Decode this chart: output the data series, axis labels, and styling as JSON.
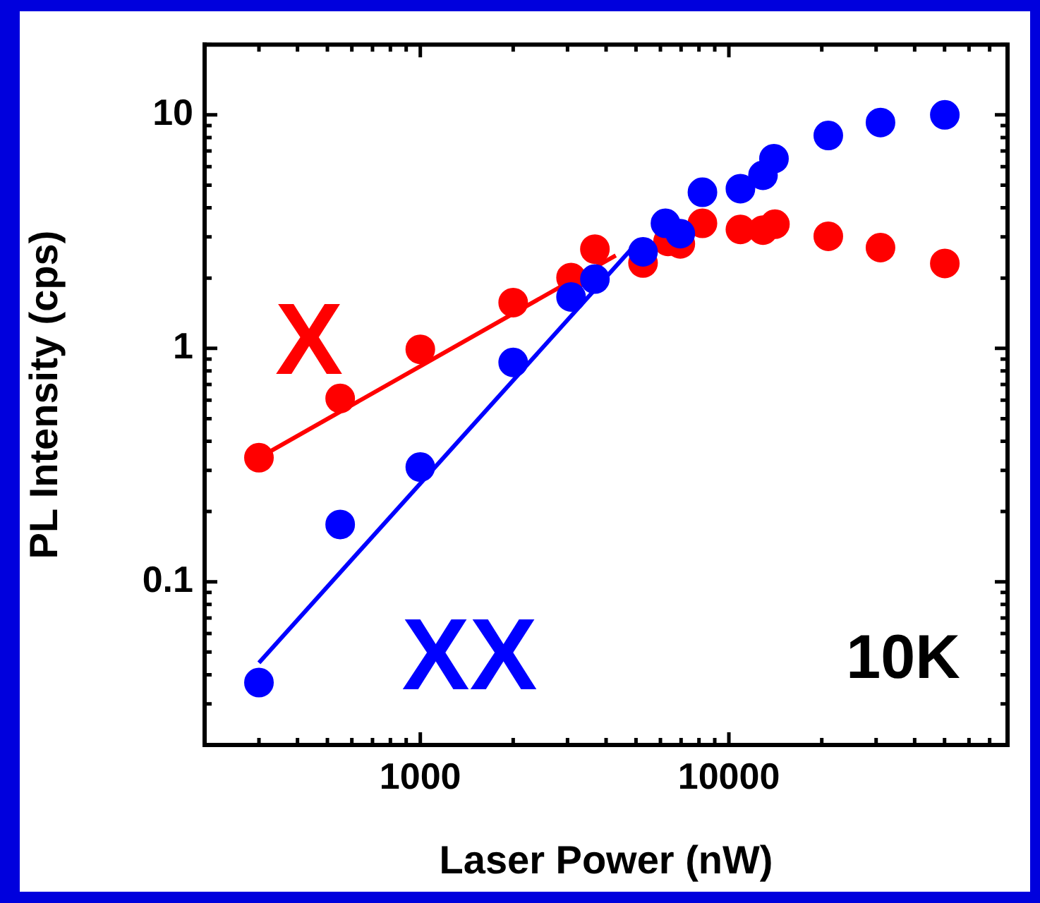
{
  "chart_data": {
    "type": "scatter",
    "xlabel": "Laser Power (nW)",
    "ylabel": "PL Intensity (cps)",
    "log": "xy",
    "grid": false,
    "legend": false,
    "marker": "circle",
    "xlim": [
      200,
      80000
    ],
    "ylim": [
      0.02,
      20
    ],
    "xticks": [
      {
        "value": 200,
        "label": null
      },
      {
        "value": 300,
        "label": null
      },
      {
        "value": 400,
        "label": null
      },
      {
        "value": 500,
        "label": null
      },
      {
        "value": 600,
        "label": null
      },
      {
        "value": 700,
        "label": null
      },
      {
        "value": 800,
        "label": null
      },
      {
        "value": 900,
        "label": null
      },
      1000,
      {
        "value": 2000,
        "label": null
      },
      {
        "value": 3000,
        "label": null
      },
      {
        "value": 4000,
        "label": null
      },
      {
        "value": 5000,
        "label": null
      },
      {
        "value": 6000,
        "label": null
      },
      {
        "value": 7000,
        "label": null
      },
      {
        "value": 8000,
        "label": null
      },
      {
        "value": 9000,
        "label": null
      },
      10000,
      {
        "value": 20000,
        "label": null
      },
      {
        "value": 30000,
        "label": null
      },
      {
        "value": 40000,
        "label": null
      },
      {
        "value": 50000,
        "label": null
      },
      {
        "value": 60000,
        "label": null
      },
      {
        "value": 70000,
        "label": null
      },
      {
        "value": 80000,
        "label": null
      }
    ],
    "yticks": [
      {
        "value": 0.02,
        "label": null
      },
      {
        "value": 0.03,
        "label": null
      },
      {
        "value": 0.04,
        "label": null
      },
      {
        "value": 0.05,
        "label": null
      },
      {
        "value": 0.06,
        "label": null
      },
      {
        "value": 0.07,
        "label": null
      },
      {
        "value": 0.08,
        "label": null
      },
      {
        "value": 0.09,
        "label": null
      },
      0.1,
      {
        "value": 0.2,
        "label": null
      },
      {
        "value": 0.3,
        "label": null
      },
      {
        "value": 0.4,
        "label": null
      },
      {
        "value": 0.5,
        "label": null
      },
      {
        "value": 0.6,
        "label": null
      },
      {
        "value": 0.7,
        "label": null
      },
      {
        "value": 0.8,
        "label": null
      },
      {
        "value": 0.9,
        "label": null
      },
      1,
      {
        "value": 2,
        "label": null
      },
      {
        "value": 3,
        "label": null
      },
      {
        "value": 4,
        "label": null
      },
      {
        "value": 5,
        "label": null
      },
      {
        "value": 6,
        "label": null
      },
      {
        "value": 7,
        "label": null
      },
      {
        "value": 8,
        "label": null
      },
      {
        "value": 9,
        "label": null
      },
      10,
      {
        "value": 20,
        "label": null
      }
    ],
    "series": [
      {
        "name": "X",
        "type": "scatter",
        "color": "#ff0000",
        "x": [
          300,
          550,
          1000,
          2000,
          3080,
          3680,
          5270,
          6350,
          6960,
          8210,
          10900,
          12900,
          14100,
          21000,
          31000,
          50100
        ],
        "values": [
          0.34,
          0.61,
          0.99,
          1.57,
          2.01,
          2.66,
          2.32,
          2.87,
          2.8,
          3.43,
          3.23,
          3.21,
          3.4,
          3.02,
          2.7,
          2.31
        ]
      },
      {
        "name": "XX",
        "type": "scatter",
        "color": "#0000ff",
        "x": [
          300,
          550,
          1000,
          2000,
          3080,
          3680,
          5270,
          6230,
          6960,
          8210,
          10900,
          12900,
          14000,
          21000,
          31000,
          50100
        ],
        "values": [
          0.037,
          0.176,
          0.31,
          0.87,
          1.66,
          1.98,
          2.59,
          3.43,
          3.1,
          4.66,
          4.83,
          5.51,
          6.49,
          8.16,
          9.27,
          10
        ]
      },
      {
        "type": "line",
        "color": "#ff0000",
        "marker": "none",
        "x": [
          300,
          4300
        ],
        "values": [
          0.34,
          2.5
        ]
      },
      {
        "type": "line",
        "color": "#0000ff",
        "marker": "none",
        "x": [
          300,
          5000
        ],
        "values": [
          0.045,
          2.8
        ]
      }
    ],
    "annotations": [
      "10K"
    ]
  }
}
